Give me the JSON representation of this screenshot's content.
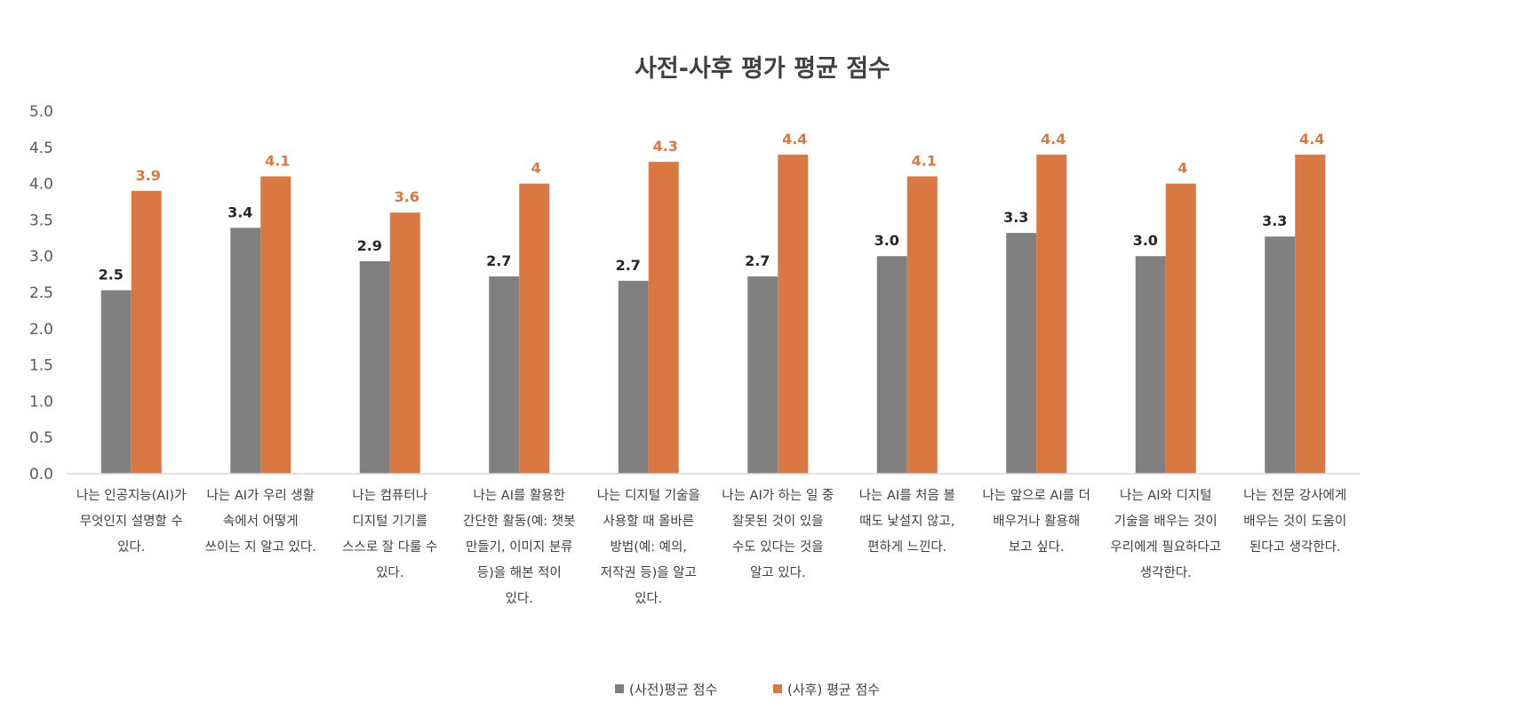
{
  "chart_data": {
    "type": "bar",
    "title": "사전-사후 평가 평균 점수",
    "xlabel": "",
    "ylabel": "",
    "ylim": [
      0,
      5
    ],
    "yticks": [
      "0.0",
      "0.5",
      "1.0",
      "1.5",
      "2.0",
      "2.5",
      "3.0",
      "3.5",
      "4.0",
      "4.5",
      "5.0"
    ],
    "grid": false,
    "legend_position": "bottom",
    "categories": [
      [
        "나는 인공지능(AI)가",
        "무엇인지 설명할 수",
        "있다."
      ],
      [
        "나는 AI가 우리 생활",
        "속에서 어떻게",
        "쓰이는 지 알고 있다."
      ],
      [
        "나는 컴퓨터나",
        "디지털 기기를",
        "스스로 잘 다룰 수",
        "있다."
      ],
      [
        "나는 AI를 활용한",
        "간단한 활동(예: 챗봇",
        "만들기, 이미지 분류",
        "등)을 해본 적이",
        "있다."
      ],
      [
        "나는 디지털 기술을",
        "사용할 때 올바른",
        "방법(예: 예의,",
        "저작권 등)을 알고",
        "있다."
      ],
      [
        "나는 AI가 하는 일 중",
        "잘못된 것이 있을",
        "수도 있다는 것을",
        "알고 있다."
      ],
      [
        "나는 AI를 처음 볼",
        "때도 낯설지 않고,",
        "편하게 느낀다."
      ],
      [
        "나는 앞으로 AI를 더",
        "배우거나 활용해",
        "보고 싶다."
      ],
      [
        "나는 AI와 디지털",
        "기술을 배우는 것이",
        "우리에게 필요하다고",
        "생각한다."
      ],
      [
        "나는 전문 강사에게",
        "배우는 것이 도움이",
        "된다고 생각한다."
      ]
    ],
    "series": [
      {
        "name": "(사전)평균 점수",
        "color": "#808080",
        "values": [
          2.53,
          3.39,
          2.93,
          2.72,
          2.66,
          2.72,
          3.0,
          3.32,
          3.0,
          3.27
        ],
        "labels": [
          "2.5",
          "3.4",
          "2.9",
          "2.7",
          "2.7",
          "2.7",
          "3.0",
          "3.3",
          "3.0",
          "3.3"
        ],
        "label_color": "#262626"
      },
      {
        "name": "(사후) 평균 점수",
        "color": "#D97842",
        "values": [
          3.9,
          4.1,
          3.6,
          4.0,
          4.3,
          4.4,
          4.1,
          4.4,
          4.0,
          4.4
        ],
        "labels": [
          "3.9",
          "4.1",
          "3.6",
          "4",
          "4.3",
          "4.4",
          "4.1",
          "4.4",
          "4",
          "4.4"
        ],
        "label_color": "#D97842"
      }
    ]
  }
}
